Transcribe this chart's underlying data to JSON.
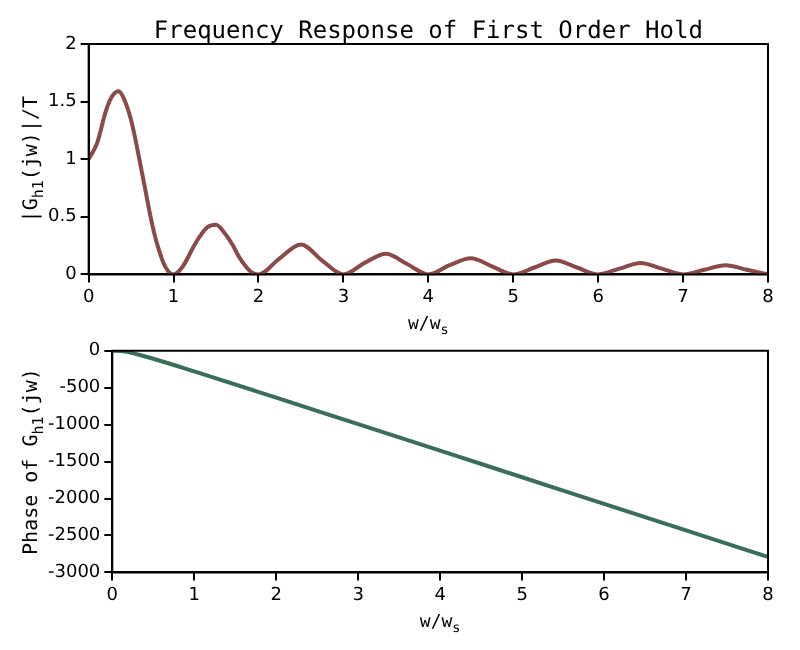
{
  "chart_data": [
    {
      "type": "line",
      "title": "Frequency Response of First Order Hold",
      "xlabel": "w/w$_{s}$",
      "ylabel": "|G$_{h1}$(jw)|/T",
      "series": [
        {
          "color": "#8b4a4a",
          "x": [
            0,
            0.1,
            0.2,
            0.25,
            0.3,
            0.35,
            0.4,
            0.5,
            0.6,
            0.7,
            0.75,
            0.8,
            0.9,
            1,
            1.1,
            1.2,
            1.25,
            1.3,
            1.4,
            1.5,
            1.6,
            1.7,
            1.75,
            1.8,
            1.9,
            2,
            2.25,
            2.5,
            2.75,
            3,
            3.25,
            3.5,
            3.75,
            4,
            4.25,
            4.5,
            4.75,
            5,
            5.25,
            5.5,
            5.75,
            6,
            6.25,
            6.5,
            6.75,
            7,
            7.25,
            7.5,
            7.75,
            8
          ],
          "values": [
            1,
            1.14,
            1.41,
            1.51,
            1.57,
            1.59,
            1.55,
            1.34,
            0.99,
            0.61,
            0.43,
            0.28,
            0.07,
            0,
            0.06,
            0.19,
            0.26,
            0.32,
            0.41,
            0.43,
            0.36,
            0.25,
            0.18,
            0.12,
            0.03,
            0,
            0.14,
            0.26,
            0.12,
            0,
            0.1,
            0.18,
            0.09,
            0,
            0.08,
            0.14,
            0.07,
            0,
            0.06,
            0.12,
            0.06,
            0,
            0.05,
            0.1,
            0.05,
            0,
            0.04,
            0.08,
            0.04,
            0
          ]
        }
      ],
      "xlim": [
        0,
        8
      ],
      "xticks": [
        0,
        1,
        2,
        3,
        4,
        5,
        6,
        7,
        8
      ],
      "ylim": [
        0,
        2
      ],
      "yticks": [
        0,
        0.5,
        1,
        1.5,
        2
      ],
      "grid": false,
      "legend": false,
      "marker": "none",
      "line_style": "solid"
    },
    {
      "type": "line",
      "xlabel": "w/w$_{s}$",
      "ylabel": "Phase of G$_{h1}$(jw)",
      "series": [
        {
          "color": "#3a6e58",
          "x": [
            0,
            0.1,
            0.2,
            0.25,
            0.5,
            1,
            2,
            3,
            4,
            5,
            6,
            7,
            8
          ],
          "values": [
            0,
            -4,
            -17,
            -32,
            -108,
            -279,
            -634,
            -993,
            -1352,
            -1712,
            -2072,
            -2432,
            -2791
          ]
        }
      ],
      "xlim": [
        0,
        8
      ],
      "xticks": [
        0,
        1,
        2,
        3,
        4,
        5,
        6,
        7,
        8
      ],
      "ylim": [
        -3000,
        0
      ],
      "yticks": [
        -3000,
        -2500,
        -2000,
        -1500,
        -1000,
        -500,
        0
      ],
      "grid": false,
      "legend": false,
      "marker": "none",
      "line_style": "solid"
    }
  ]
}
